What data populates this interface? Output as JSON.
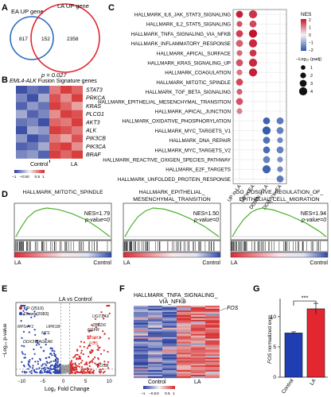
{
  "panels": {
    "a": {
      "letter": "A",
      "ea_label": "EA UP gene",
      "la_label": "LA UP gene",
      "ea_only": "817",
      "overlap": "152",
      "la_only": "2358",
      "pvalue": "p = 0.027",
      "ea_color": "#2d6cc4",
      "la_color": "#e3262f"
    },
    "b": {
      "letter": "B",
      "title_gene": "EML4-ALK",
      "title_rest": " Fusion Signature genes",
      "genes": [
        "STAT3",
        "PRKCA",
        "KRAS",
        "PLCG1",
        "AKT3",
        "ALK",
        "PIK3CB",
        "PIK3CA",
        "BRAF"
      ],
      "groups": [
        "Control",
        "LA"
      ],
      "scale_ticks": [
        "−1",
        "−0.5",
        "0",
        "0.5",
        "1"
      ],
      "matrix": [
        [
          -0.9,
          -0.7,
          -0.8,
          0.6,
          0.9,
          0.7
        ],
        [
          -0.6,
          -0.9,
          -0.4,
          0.8,
          0.5,
          0.9
        ],
        [
          -0.8,
          -0.5,
          -0.7,
          0.9,
          0.7,
          0.4
        ],
        [
          -0.4,
          -0.8,
          -0.6,
          0.5,
          0.9,
          0.8
        ],
        [
          -0.7,
          -0.6,
          -0.9,
          0.7,
          0.6,
          0.9
        ],
        [
          -0.9,
          -0.4,
          -0.5,
          0.9,
          0.8,
          0.6
        ],
        [
          -0.5,
          -0.9,
          -0.7,
          0.6,
          0.4,
          0.8
        ],
        [
          -0.8,
          -0.7,
          -0.4,
          0.8,
          0.9,
          0.5
        ],
        [
          -0.6,
          -0.5,
          -0.8,
          0.9,
          0.7,
          0.9
        ]
      ]
    },
    "c": {
      "letter": "C",
      "pathways": [
        "HALLMARK_IL6_JAK_STAT3_SIGNALING",
        "HALLMARK_IL2_STAT5_SIGNALING",
        "HALLMARK_TNFA_SIGNALING_VIA_NFKB",
        "HALLMARK_INFLAMMATORY_RESPONSE",
        "HALLMARK_APICAL_SURFACE",
        "HALLMARK_KRAS_SIGNALING_UP",
        "HALLMARK_COAGULATION",
        "HALLMARK_MITOTIC_SPINDLE",
        "HALLMARK_TGF_BETA_SIGNALING",
        "HALLMARK_EPITHELIAL_MESENCHYMAL_TRANSITION",
        "HALLMARK_APICAL_JUNCTION",
        "HALLMARK_OXIDATIVE_PHOSPHORYLATION",
        "HALLMARK_MYC_TARGETS_V1",
        "HALLMARK_DNA_REPAIR",
        "HALLMARK_MYC_TARGETS_V2",
        "HALLMARK_REACTIVE_OXIGEN_SPECIES_PATHWAY",
        "HALLMARK_E2F_TARGETS",
        "HALLMARK_UNFOLDED_PROTEIN_RESPONSE"
      ],
      "columns": [
        "UP in LA",
        "UP in EA",
        "DOWN in LA",
        "DOWN in EA"
      ],
      "dots": [
        {
          "row": 0,
          "col": 0,
          "nes": 2.0,
          "size": 3
        },
        {
          "row": 0,
          "col": 1,
          "nes": 1.8,
          "size": 4
        },
        {
          "row": 1,
          "col": 0,
          "nes": 1.5,
          "size": 2
        },
        {
          "row": 1,
          "col": 1,
          "nes": 1.6,
          "size": 3
        },
        {
          "row": 2,
          "col": 0,
          "nes": 1.7,
          "size": 3
        },
        {
          "row": 2,
          "col": 1,
          "nes": 2.1,
          "size": 4
        },
        {
          "row": 3,
          "col": 0,
          "nes": 1.4,
          "size": 3
        },
        {
          "row": 3,
          "col": 1,
          "nes": 1.9,
          "size": 4
        },
        {
          "row": 4,
          "col": 0,
          "nes": 1.3,
          "size": 2
        },
        {
          "row": 4,
          "col": 1,
          "nes": 1.8,
          "size": 3
        },
        {
          "row": 5,
          "col": 0,
          "nes": 1.5,
          "size": 3
        },
        {
          "row": 5,
          "col": 1,
          "nes": 1.9,
          "size": 4
        },
        {
          "row": 6,
          "col": 0,
          "nes": 1.2,
          "size": 2
        },
        {
          "row": 6,
          "col": 1,
          "nes": 2.0,
          "size": 4
        },
        {
          "row": 7,
          "col": 0,
          "nes": 1.6,
          "size": 3
        },
        {
          "row": 8,
          "col": 0,
          "nes": 1.4,
          "size": 2
        },
        {
          "row": 9,
          "col": 0,
          "nes": 1.5,
          "size": 3
        },
        {
          "row": 10,
          "col": 0,
          "nes": 1.1,
          "size": 2
        },
        {
          "row": 11,
          "col": 2,
          "nes": -1.9,
          "size": 3
        },
        {
          "row": 11,
          "col": 3,
          "nes": -1.6,
          "size": 3
        },
        {
          "row": 12,
          "col": 2,
          "nes": -2.0,
          "size": 4
        },
        {
          "row": 12,
          "col": 3,
          "nes": -1.5,
          "size": 3
        },
        {
          "row": 13,
          "col": 2,
          "nes": -1.7,
          "size": 3
        },
        {
          "row": 13,
          "col": 3,
          "nes": -1.4,
          "size": 2
        },
        {
          "row": 14,
          "col": 2,
          "nes": -1.8,
          "size": 3
        },
        {
          "row": 14,
          "col": 3,
          "nes": -1.5,
          "size": 3
        },
        {
          "row": 15,
          "col": 2,
          "nes": -1.5,
          "size": 3
        },
        {
          "row": 15,
          "col": 3,
          "nes": -1.3,
          "size": 2
        },
        {
          "row": 16,
          "col": 2,
          "nes": -1.9,
          "size": 4
        },
        {
          "row": 16,
          "col": 3,
          "nes": -1.4,
          "size": 2
        },
        {
          "row": 17,
          "col": 3,
          "nes": -1.6,
          "size": 3
        }
      ],
      "nes_title": "NES",
      "nes_ticks": [
        "2",
        "1",
        "0",
        "−1",
        "−2"
      ],
      "size_title": "−Log₁₀ (padj)",
      "size_ticks": [
        "1",
        "2",
        "3",
        "4"
      ]
    },
    "d": {
      "letter": "D",
      "plots": [
        {
          "title1": "HALLMARK_MITOTIC_SPINDLE",
          "title2": "",
          "nes": "NES=1.79",
          "p": "p-value=0"
        },
        {
          "title1": "HALLMARK_EPITHELIAL_",
          "title2": "MESENCHYMAL_TRANSITION",
          "nes": "NES=1.50",
          "p": "p-value=0"
        },
        {
          "title1": "GO_POSITIVE_REGULATION_OF_",
          "title2": "EPITHELIAL_CELL_MIGRATION",
          "nes": "NES=1.94",
          "p": "p-value=0"
        }
      ],
      "left_label": "LA",
      "right_label": "Control"
    },
    "e": {
      "letter": "E",
      "title": "LA vs Control",
      "legend_up": "UP (2510)",
      "legend_down": "Down (2083)",
      "xlabel": "Log₂ Fold Change",
      "ylabel": "−Log₁₀ p-value",
      "xticks": [
        "−10",
        "−5",
        "0",
        "5",
        "10"
      ],
      "genes": [
        "UGT1A9",
        "ZBED6",
        "EGFR",
        "EGR1",
        "FOS",
        "FOSB",
        "UPK1B",
        "NTS",
        "RPS4Y1",
        "MAGEA6",
        "DDX3Y"
      ]
    },
    "f": {
      "letter": "F",
      "title1": "HALLMARK_TNFA_SIGNALING_",
      "title2": "VIA_NFKB",
      "gene": "FOS",
      "groups": [
        "Control",
        "LA"
      ],
      "scale_ticks": [
        "−1",
        "−0.5",
        "0",
        "0.5",
        "1"
      ]
    },
    "g": {
      "letter": "G",
      "ylabel_gene": "FOS",
      "ylabel_rest": " normalized expr",
      "sig": "***",
      "categories": [
        "Control",
        "LA"
      ],
      "yticks": [
        "0",
        "5",
        "10"
      ]
    }
  },
  "chart_data": [
    {
      "type": "bar",
      "categories": [
        "Control",
        "LA"
      ],
      "values": [
        7.3,
        11.3
      ],
      "errors": [
        0.2,
        0.9
      ],
      "ylabel": "FOS normalized expr",
      "ylim": [
        0,
        13
      ],
      "colors": [
        "#1f3eb4",
        "#e3262f"
      ]
    }
  ]
}
